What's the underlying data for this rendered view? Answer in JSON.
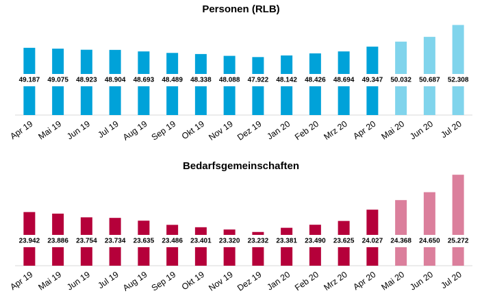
{
  "chart_data": [
    {
      "type": "bar",
      "title": "Personen (RLB)",
      "categories": [
        "Apr 19",
        "Mai 19",
        "Jun 19",
        "Jul 19",
        "Aug 19",
        "Sep 19",
        "Okt 19",
        "Nov 19",
        "Dez 19",
        "Jan 20",
        "Feb 20",
        "Mrz 20",
        "Apr 20",
        "Mai 20",
        "Jun 20",
        "Jul 20"
      ],
      "values": [
        49187,
        49075,
        48923,
        48904,
        48693,
        48489,
        48338,
        48088,
        47922,
        48142,
        48426,
        48694,
        49347,
        50032,
        50687,
        52308
      ],
      "value_labels": [
        "49.187",
        "49.075",
        "48.923",
        "48.904",
        "48.693",
        "48.489",
        "48.338",
        "48.088",
        "47.922",
        "48.142",
        "48.426",
        "48.694",
        "49.347",
        "50.032",
        "50.687",
        "52.308"
      ],
      "colors": [
        "#00a2d9",
        "#00a2d9",
        "#00a2d9",
        "#00a2d9",
        "#00a2d9",
        "#00a2d9",
        "#00a2d9",
        "#00a2d9",
        "#00a2d9",
        "#00a2d9",
        "#00a2d9",
        "#00a2d9",
        "#00a2d9",
        "#80d4ec",
        "#80d4ec",
        "#80d4ec"
      ],
      "ylim": [
        40000,
        53100
      ]
    },
    {
      "type": "bar",
      "title": "Bedarfsgemeinschaften",
      "categories": [
        "Apr 19",
        "Mai 19",
        "Jun 19",
        "Jul 19",
        "Aug 19",
        "Sep 19",
        "Okt 19",
        "Nov 19",
        "Dez 19",
        "Jan 20",
        "Feb 20",
        "Mrz 20",
        "Apr 20",
        "Mai 20",
        "Jun 20",
        "Jul 20"
      ],
      "values": [
        23942,
        23886,
        23754,
        23734,
        23635,
        23486,
        23401,
        23320,
        23232,
        23381,
        23490,
        23625,
        24027,
        24368,
        24650,
        25272
      ],
      "value_labels": [
        "23.942",
        "23.886",
        "23.754",
        "23.734",
        "23.635",
        "23.486",
        "23.401",
        "23.320",
        "23.232",
        "23.381",
        "23.490",
        "23.625",
        "24.027",
        "24.368",
        "24.650",
        "25.272"
      ],
      "colors": [
        "#b5003a",
        "#b5003a",
        "#b5003a",
        "#b5003a",
        "#b5003a",
        "#b5003a",
        "#b5003a",
        "#b5003a",
        "#b5003a",
        "#b5003a",
        "#b5003a",
        "#b5003a",
        "#b5003a",
        "#db7f9c",
        "#db7f9c",
        "#db7f9c"
      ],
      "ylim": [
        22030,
        25300
      ]
    }
  ]
}
